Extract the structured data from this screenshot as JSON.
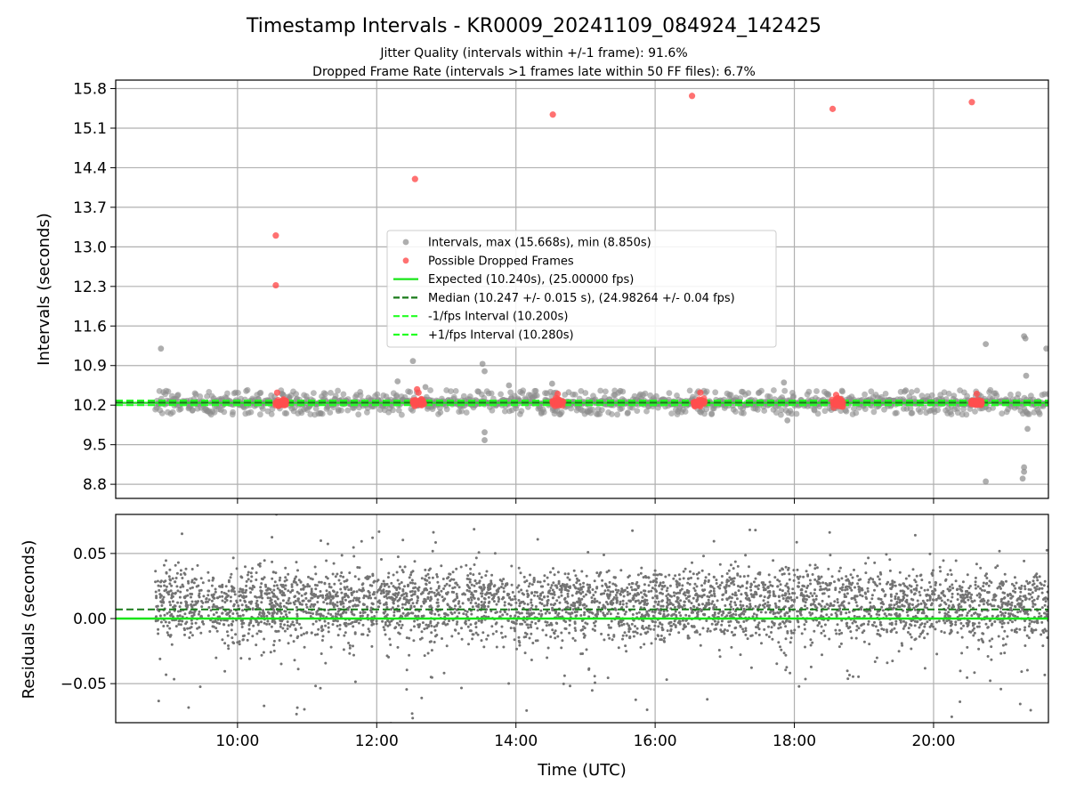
{
  "chart_data": [
    {
      "type": "scatter",
      "panel": "intervals",
      "title": "Timestamp Intervals - KR0009_20241109_084924_142425",
      "subtitle_line1": "Jitter Quality (intervals within +/-1 frame): 91.6%",
      "subtitle_line2": "Dropped Frame Rate (intervals >1 frames late within 50 FF files): 6.7%",
      "ylabel": "Intervals (seconds)",
      "xlabel": "",
      "xlim_hours": [
        8.25,
        21.65
      ],
      "ylim": [
        8.55,
        15.95
      ],
      "yticks": [
        8.8,
        9.5,
        10.2,
        10.9,
        11.6,
        12.3,
        13.0,
        13.7,
        14.4,
        15.1,
        15.8
      ],
      "ytick_labels": [
        "8.8",
        "9.5",
        "10.2",
        "10.9",
        "11.6",
        "12.3",
        "13.0",
        "13.7",
        "14.4",
        "15.1",
        "15.8"
      ],
      "grid": true,
      "legend_position": "center",
      "legend": [
        {
          "label": "Intervals, max (15.668s), min (8.850s)",
          "marker": "dot",
          "color": "#9a9a9a"
        },
        {
          "label": "Possible Dropped Frames",
          "marker": "dot",
          "color": "#ff4d4d"
        },
        {
          "label": "Expected (10.240s), (25.00000 fps)",
          "marker": "line",
          "color": "#19e619"
        },
        {
          "label": "Median (10.247 +/- 0.015 s), (24.98264 +/- 0.04 fps)",
          "marker": "dash",
          "color": "#1a7a1a"
        },
        {
          "label": "-1/fps Interval (10.200s)",
          "marker": "dash",
          "color": "#22ff22"
        },
        {
          "label": "+1/fps Interval (10.280s)",
          "marker": "dash",
          "color": "#22ff22"
        }
      ],
      "reference_lines": {
        "expected": 10.24,
        "median": 10.247,
        "minus_one_fps": 10.2,
        "plus_one_fps": 10.28
      },
      "dropped_frame_clusters_hours": [
        10.62,
        12.6,
        14.6,
        16.63,
        18.62,
        20.62
      ],
      "dropped_frame_outliers": [
        {
          "x": 10.55,
          "y": 13.2
        },
        {
          "x": 10.55,
          "y": 12.32
        },
        {
          "x": 12.55,
          "y": 14.2
        },
        {
          "x": 14.53,
          "y": 15.34
        },
        {
          "x": 16.53,
          "y": 15.67
        },
        {
          "x": 18.55,
          "y": 15.44
        },
        {
          "x": 20.55,
          "y": 15.56
        },
        {
          "x": 10.57,
          "y": 10.42
        },
        {
          "x": 12.58,
          "y": 10.48
        },
        {
          "x": 12.6,
          "y": 10.42
        },
        {
          "x": 14.6,
          "y": 10.4
        },
        {
          "x": 16.65,
          "y": 10.42
        },
        {
          "x": 18.6,
          "y": 10.38
        },
        {
          "x": 20.62,
          "y": 10.4
        }
      ],
      "interval_outliers": [
        {
          "x": 8.9,
          "y": 11.2
        },
        {
          "x": 12.52,
          "y": 10.98
        },
        {
          "x": 13.52,
          "y": 10.93
        },
        {
          "x": 13.55,
          "y": 10.8
        },
        {
          "x": 13.55,
          "y": 9.72
        },
        {
          "x": 13.55,
          "y": 9.58
        },
        {
          "x": 14.52,
          "y": 10.58
        },
        {
          "x": 13.9,
          "y": 10.55
        },
        {
          "x": 17.85,
          "y": 10.6
        },
        {
          "x": 17.9,
          "y": 9.93
        },
        {
          "x": 20.75,
          "y": 11.28
        },
        {
          "x": 20.75,
          "y": 8.85
        },
        {
          "x": 21.3,
          "y": 11.42
        },
        {
          "x": 21.32,
          "y": 11.38
        },
        {
          "x": 21.33,
          "y": 10.72
        },
        {
          "x": 21.35,
          "y": 9.78
        },
        {
          "x": 21.3,
          "y": 9.1
        },
        {
          "x": 21.3,
          "y": 9.02
        },
        {
          "x": 21.28,
          "y": 8.9
        },
        {
          "x": 21.62,
          "y": 11.2
        },
        {
          "x": 12.3,
          "y": 10.62
        },
        {
          "x": 12.7,
          "y": 10.52
        },
        {
          "x": 15.5,
          "y": 10.45
        },
        {
          "x": 19.6,
          "y": 10.46
        }
      ]
    },
    {
      "type": "scatter",
      "panel": "residuals",
      "ylabel": "Residuals (seconds)",
      "xlabel": "Time (UTC)",
      "xlim_hours": [
        8.25,
        21.65
      ],
      "ylim": [
        -0.08,
        0.08
      ],
      "yticks": [
        -0.05,
        0.0,
        0.05
      ],
      "ytick_labels": [
        "−0.05",
        "0.00",
        "0.05"
      ],
      "xticks_hours": [
        10,
        12,
        14,
        16,
        18,
        20
      ],
      "xtick_labels": [
        "10:00",
        "12:00",
        "14:00",
        "16:00",
        "18:00",
        "20:00"
      ],
      "grid": true,
      "data_start_hour": 8.82,
      "data_end_hour": 21.65,
      "zero_line": 0.0,
      "median_line": 0.007,
      "bands": [
        {
          "center": 0.02,
          "spread": 0.009,
          "share": 0.5
        },
        {
          "center": 0.0,
          "spread": 0.009,
          "share": 0.4
        },
        {
          "center": 0.0,
          "spread": 0.035,
          "share": 0.1
        }
      ],
      "point_count": 4200,
      "point_color": "#737373"
    }
  ]
}
